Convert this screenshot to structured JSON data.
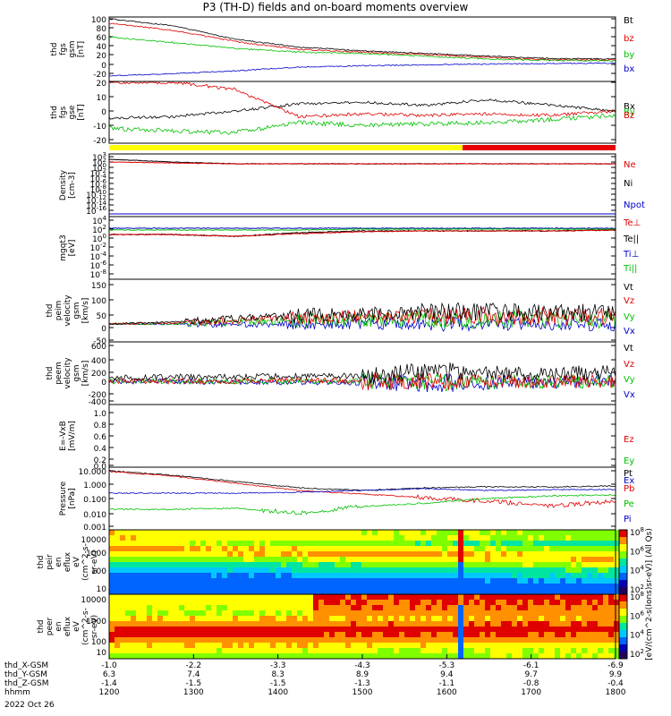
{
  "title": "P3 (TH-D) fields and on-board moments overview",
  "colors": {
    "black": "#000000",
    "red": "#e00000",
    "green": "#00c000",
    "blue": "#0000c8",
    "yellow": "#ffff00",
    "barred": "#e80000"
  },
  "panels": [
    {
      "key": "fgs_gsm",
      "ylabel": [
        "thd",
        "fgs",
        "gsm",
        "[nT]"
      ],
      "ticks": [
        "100",
        "80",
        "60",
        "40",
        "20",
        "0",
        "-20"
      ],
      "legend": [
        {
          "t": "Bt",
          "c": "black"
        },
        {
          "t": "bz",
          "c": "red"
        },
        {
          "t": "by",
          "c": "green"
        },
        {
          "t": "bx",
          "c": "blue"
        }
      ]
    },
    {
      "key": "fgs_gse",
      "ylabel": [
        "thd",
        "fgs",
        "gse",
        "[nT]"
      ],
      "ticks": [
        "20",
        "10",
        "0",
        "-10",
        "-20"
      ],
      "legend": [
        {
          "t": "Bx",
          "c": "black"
        },
        {
          "t": "By",
          "c": "green"
        },
        {
          "t": "Bz",
          "c": "red"
        }
      ]
    },
    {
      "key": "density",
      "ylabel": [
        "Density",
        "[cm-3]"
      ],
      "ticks": [
        "10^3",
        "10^2",
        "10^0",
        "10^-2",
        "10^-4",
        "10^-6",
        "10^-8",
        "10^-10",
        "10^-12",
        "10^-14",
        "10^-16"
      ],
      "legend": [
        {
          "t": "Ne",
          "c": "red"
        },
        {
          "t": "Ni",
          "c": "black"
        },
        {
          "t": "Npot",
          "c": "blue"
        }
      ]
    },
    {
      "key": "temp",
      "ylabel": [
        "mgqt3",
        "[eV]"
      ],
      "ticks": [
        "10^4",
        "10^2",
        "10^0",
        "10^-2",
        "10^-4",
        "10^-6",
        "10^-8"
      ],
      "legend": [
        {
          "t": "Te⊥",
          "c": "red"
        },
        {
          "t": "Te||",
          "c": "black"
        },
        {
          "t": "Ti⊥",
          "c": "blue"
        },
        {
          "t": "Ti||",
          "c": "green"
        }
      ]
    },
    {
      "key": "peim_v",
      "ylabel": [
        "thd",
        "peim",
        "velocity",
        "gsm",
        "[km/s]"
      ],
      "ticks": [
        "150",
        "100",
        "50",
        "0",
        "-50"
      ],
      "legend": [
        {
          "t": "Vt",
          "c": "black"
        },
        {
          "t": "Vz",
          "c": "red"
        },
        {
          "t": "Vy",
          "c": "green"
        },
        {
          "t": "Vx",
          "c": "blue"
        }
      ]
    },
    {
      "key": "peem_v",
      "ylabel": [
        "thd",
        "peem",
        "velocity",
        "gsm",
        "[km/s]"
      ],
      "ticks": [
        "600",
        "400",
        "200",
        "0",
        "-200",
        "-400"
      ],
      "legend": [
        {
          "t": "Vt",
          "c": "black"
        },
        {
          "t": "Vz",
          "c": "red"
        },
        {
          "t": "Vy",
          "c": "green"
        },
        {
          "t": "Vx",
          "c": "blue"
        }
      ]
    },
    {
      "key": "efield",
      "ylabel": [
        "E=-VxB",
        "[mV/m]"
      ],
      "ticks": [
        "1.0",
        "0.8",
        "0.6",
        "0.4",
        "0.2",
        "0.0"
      ],
      "legend": [
        {
          "t": "Ez",
          "c": "red"
        },
        {
          "t": "Ey",
          "c": "green"
        },
        {
          "t": "Ex",
          "c": "blue"
        }
      ]
    },
    {
      "key": "pressure",
      "ylabel": [
        "Pressure",
        "[nPa]"
      ],
      "ticks": [
        "10.000",
        "1.000",
        "0.100",
        "0.010",
        "0.001"
      ],
      "legend": [
        {
          "t": "Pt",
          "c": "black"
        },
        {
          "t": "Pb",
          "c": "red"
        },
        {
          "t": "Pe",
          "c": "green"
        },
        {
          "t": "Pi",
          "c": "blue"
        }
      ]
    },
    {
      "key": "peir_en",
      "ylabel": [
        "thd",
        "peir",
        "en",
        "eflux",
        "eV",
        "(cm^2-s-",
        "sr-eV)"
      ],
      "ticks": [
        "10000",
        "1000",
        "100",
        "10"
      ],
      "legend": []
    },
    {
      "key": "peer_en",
      "ylabel": [
        "thd",
        "peer",
        "en",
        "eflux",
        "eV",
        "(cm^2-s-",
        "sr-eV)"
      ],
      "ticks": [
        "10000",
        "1000",
        "100",
        "10"
      ],
      "legend": []
    }
  ],
  "colorbar": {
    "label": "[eV/(cm^2-s(Ions)sr-eV)] (All Qs)",
    "ticks_top": [
      "10^8",
      "10^6",
      "10^4",
      "10^2"
    ],
    "ticks_bottom": [
      "10^8",
      "10^6",
      "10^4",
      "10^2"
    ]
  },
  "xaxis": {
    "rows": [
      {
        "label": "thd_X-GSM",
        "values": [
          "-1.0",
          "-2.2",
          "-3.3",
          "-4.3",
          "-5.3",
          "-6.1",
          "-6.9"
        ]
      },
      {
        "label": "thd_Y-GSM",
        "values": [
          "6.3",
          "7.4",
          "8.3",
          "8.9",
          "9.4",
          "9.7",
          "9.9"
        ]
      },
      {
        "label": "thd_Z-GSM",
        "values": [
          "-1.4",
          "-1.5",
          "-1.5",
          "-1.3",
          "-1.1",
          "-0.8",
          "-0.4"
        ]
      },
      {
        "label": "hhmm",
        "values": [
          "1200",
          "1300",
          "1400",
          "1500",
          "1600",
          "1700",
          "1800"
        ]
      }
    ],
    "date": "2022 Oct 26"
  },
  "chart_data": {
    "type": "line",
    "title": "P3 (TH-D) fields and on-board moments overview",
    "x_hhmm": [
      "1200",
      "1300",
      "1400",
      "1500",
      "1600",
      "1700",
      "1800"
    ],
    "series": [
      {
        "panel": "fgs gsm [nT]",
        "name": "Bt",
        "x": [
          "1200",
          "1300",
          "1400",
          "1500",
          "1600",
          "1700",
          "1800"
        ],
        "values": [
          100,
          70,
          35,
          25,
          18,
          12,
          12
        ]
      },
      {
        "panel": "fgs gsm [nT]",
        "name": "bz",
        "x": [
          "1200",
          "1300",
          "1400",
          "1500",
          "1600",
          "1700",
          "1800"
        ],
        "values": [
          90,
          60,
          30,
          22,
          17,
          10,
          10
        ]
      },
      {
        "panel": "fgs gsm [nT]",
        "name": "by",
        "x": [
          "1200",
          "1300",
          "1400",
          "1500",
          "1600",
          "1700",
          "1800"
        ],
        "values": [
          60,
          40,
          25,
          20,
          15,
          10,
          8
        ]
      },
      {
        "panel": "fgs gsm [nT]",
        "name": "bx",
        "x": [
          "1200",
          "1300",
          "1400",
          "1500",
          "1600",
          "1700",
          "1800"
        ],
        "values": [
          -25,
          -18,
          -8,
          -3,
          0,
          2,
          3
        ]
      },
      {
        "panel": "fgs gse [nT]",
        "name": "Bx",
        "x": [
          "1200",
          "1300",
          "1400",
          "1500",
          "1600",
          "1700",
          "1800"
        ],
        "values": [
          -5,
          -3,
          5,
          5,
          6,
          3,
          0
        ]
      },
      {
        "panel": "fgs gse [nT]",
        "name": "By",
        "x": [
          "1200",
          "1300",
          "1400",
          "1500",
          "1600",
          "1700",
          "1800"
        ],
        "values": [
          -12,
          -15,
          -8,
          -10,
          -8,
          -6,
          -2
        ]
      },
      {
        "panel": "fgs gse [nT]",
        "name": "Bz",
        "x": [
          "1200",
          "1300",
          "1400",
          "1500",
          "1600",
          "1700",
          "1800"
        ],
        "values": [
          20,
          18,
          -2,
          -3,
          -2,
          -3,
          0
        ]
      },
      {
        "panel": "Pressure [nPa]",
        "name": "Pt",
        "x": [
          "1200",
          "1300",
          "1400",
          "1500",
          "1600",
          "1700",
          "1800"
        ],
        "values": [
          5.0,
          1.2,
          0.4,
          0.45,
          0.5,
          0.5,
          0.6
        ]
      },
      {
        "panel": "Pressure [nPa]",
        "name": "Pb",
        "x": [
          "1200",
          "1300",
          "1400",
          "1500",
          "1600",
          "1700",
          "1800"
        ],
        "values": [
          4.5,
          1.0,
          0.3,
          0.2,
          0.1,
          0.05,
          0.07
        ]
      },
      {
        "panel": "Pressure [nPa]",
        "name": "Pe",
        "x": [
          "1200",
          "1300",
          "1400",
          "1500",
          "1600",
          "1700",
          "1800"
        ],
        "values": [
          0.02,
          0.02,
          0.03,
          0.04,
          0.06,
          0.1,
          0.12
        ]
      },
      {
        "panel": "Pressure [nPa]",
        "name": "Pi",
        "x": [
          "1200",
          "1300",
          "1400",
          "1500",
          "1600",
          "1700",
          "1800"
        ],
        "values": [
          0.3,
          0.3,
          0.3,
          0.35,
          0.4,
          0.4,
          0.4
        ]
      }
    ]
  }
}
